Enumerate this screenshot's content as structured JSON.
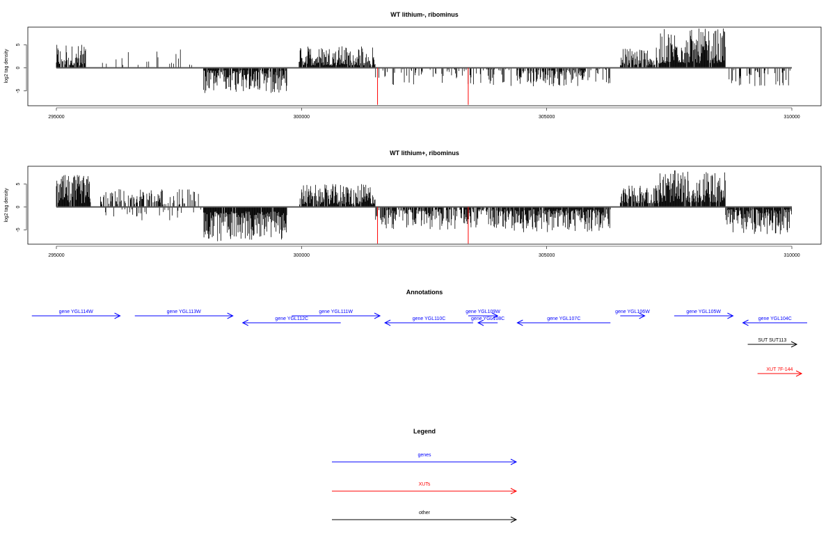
{
  "colors": {
    "gene": "#0000ff",
    "xut": "#ff0000",
    "other": "#000000",
    "highlight": "#ff0000"
  },
  "chart_data": [
    {
      "type": "bar",
      "title": "WT lithium-, ribominus",
      "ylabel": "log2 tag density",
      "xlim": [
        295000,
        310000
      ],
      "ylim": [
        -8.5,
        8.5
      ],
      "x_ticks": [
        295000,
        300000,
        305000,
        310000
      ],
      "y_ticks": [
        -5,
        0,
        5
      ],
      "segments": [
        {
          "x": [
            295000,
            295600
          ],
          "y": [
            0.5,
            5.0
          ],
          "dens": 0.8
        },
        {
          "x": [
            295900,
            297900
          ],
          "y": [
            0.5,
            4.0
          ],
          "dens": 0.12
        },
        {
          "x": [
            298000,
            299700
          ],
          "y": [
            -5.5,
            -0.5
          ],
          "dens": 0.85
        },
        {
          "x": [
            299950,
            301500
          ],
          "y": [
            0.5,
            4.8
          ],
          "dens": 0.9
        },
        {
          "x": [
            301500,
            306300
          ],
          "y": [
            -4.0,
            -0.3
          ],
          "dens": 0.25
        },
        {
          "x": [
            304400,
            305800
          ],
          "y": [
            -4.0,
            -0.5
          ],
          "dens": 0.6
        },
        {
          "x": [
            306500,
            307300
          ],
          "y": [
            0.5,
            4.5
          ],
          "dens": 0.8
        },
        {
          "x": [
            307300,
            308650
          ],
          "y": [
            1.0,
            8.5
          ],
          "dens": 0.95
        },
        {
          "x": [
            308700,
            310000
          ],
          "y": [
            -4.0,
            -0.5
          ],
          "dens": 0.25
        }
      ],
      "highlights": [
        {
          "x": 301550,
          "y": -8.0
        },
        {
          "x": 303400,
          "y": -8.0
        }
      ]
    },
    {
      "type": "bar",
      "title": "WT lithium+, ribominus",
      "ylabel": "log2 tag density",
      "xlim": [
        295000,
        310000
      ],
      "ylim": [
        -8.5,
        8.5
      ],
      "x_ticks": [
        295000,
        300000,
        305000,
        310000
      ],
      "y_ticks": [
        -5,
        0,
        5
      ],
      "segments": [
        {
          "x": [
            295000,
            295700
          ],
          "y": [
            0.8,
            7.0
          ],
          "dens": 0.9
        },
        {
          "x": [
            295900,
            297900
          ],
          "y": [
            0.5,
            4.0
          ],
          "dens": 0.5
        },
        {
          "x": [
            296000,
            298000
          ],
          "y": [
            -3.0,
            -0.5
          ],
          "dens": 0.15
        },
        {
          "x": [
            298000,
            299700
          ],
          "y": [
            -7.5,
            -1.0
          ],
          "dens": 0.95
        },
        {
          "x": [
            299950,
            301500
          ],
          "y": [
            0.5,
            5.0
          ],
          "dens": 0.9
        },
        {
          "x": [
            301500,
            304300
          ],
          "y": [
            -5.0,
            -0.5
          ],
          "dens": 0.7
        },
        {
          "x": [
            304300,
            306300
          ],
          "y": [
            -5.5,
            -0.5
          ],
          "dens": 0.9
        },
        {
          "x": [
            306500,
            307300
          ],
          "y": [
            0.8,
            5.0
          ],
          "dens": 0.85
        },
        {
          "x": [
            307300,
            308650
          ],
          "y": [
            1.0,
            8.0
          ],
          "dens": 0.95
        },
        {
          "x": [
            308650,
            310000
          ],
          "y": [
            -6.0,
            -0.5
          ],
          "dens": 0.9
        }
      ],
      "highlights": [
        {
          "x": 301550,
          "y": -8.0
        },
        {
          "x": 303400,
          "y": -8.0
        }
      ]
    }
  ],
  "annotations": {
    "title": "Annotations",
    "features": [
      {
        "label": "gene YGL114W",
        "kind": "gene",
        "strand": "+",
        "start": 294500,
        "end": 296300,
        "row": 0
      },
      {
        "label": "gene YGL113W",
        "kind": "gene",
        "strand": "+",
        "start": 296600,
        "end": 298600,
        "row": 0
      },
      {
        "label": "gene YGL112C",
        "kind": "gene",
        "strand": "-",
        "start": 298800,
        "end": 300800,
        "row": 1
      },
      {
        "label": "gene YGL111W",
        "kind": "gene",
        "strand": "+",
        "start": 299800,
        "end": 301600,
        "row": 0
      },
      {
        "label": "gene YGL110C",
        "kind": "gene",
        "strand": "-",
        "start": 301700,
        "end": 303500,
        "row": 1
      },
      {
        "label": "gene YGL109W",
        "kind": "gene",
        "strand": "+",
        "start": 303400,
        "end": 304000,
        "row": 0
      },
      {
        "label": "gene YGL108C",
        "kind": "gene",
        "strand": "-",
        "start": 303600,
        "end": 304000,
        "row": 1
      },
      {
        "label": "gene YGL107C",
        "kind": "gene",
        "strand": "-",
        "start": 304400,
        "end": 306300,
        "row": 1
      },
      {
        "label": "gene YGL106W",
        "kind": "gene",
        "strand": "+",
        "start": 306500,
        "end": 307000,
        "row": 0
      },
      {
        "label": "gene YGL105W",
        "kind": "gene",
        "strand": "+",
        "start": 307600,
        "end": 308800,
        "row": 0
      },
      {
        "label": "gene YGL104C",
        "kind": "gene",
        "strand": "-",
        "start": 309000,
        "end": 310500,
        "row": 1
      },
      {
        "label": "SUT SUT113",
        "kind": "other",
        "strand": "+",
        "start": 309100,
        "end": 310100,
        "row": 2
      },
      {
        "label": "XUT 7F-144",
        "kind": "xut",
        "strand": "+",
        "start": 309300,
        "end": 310200,
        "row": 3
      }
    ]
  },
  "legend": {
    "title": "Legend",
    "items": [
      {
        "label": "genes",
        "kind": "gene"
      },
      {
        "label": "XUTs",
        "kind": "xut"
      },
      {
        "label": "other",
        "kind": "other"
      }
    ]
  }
}
